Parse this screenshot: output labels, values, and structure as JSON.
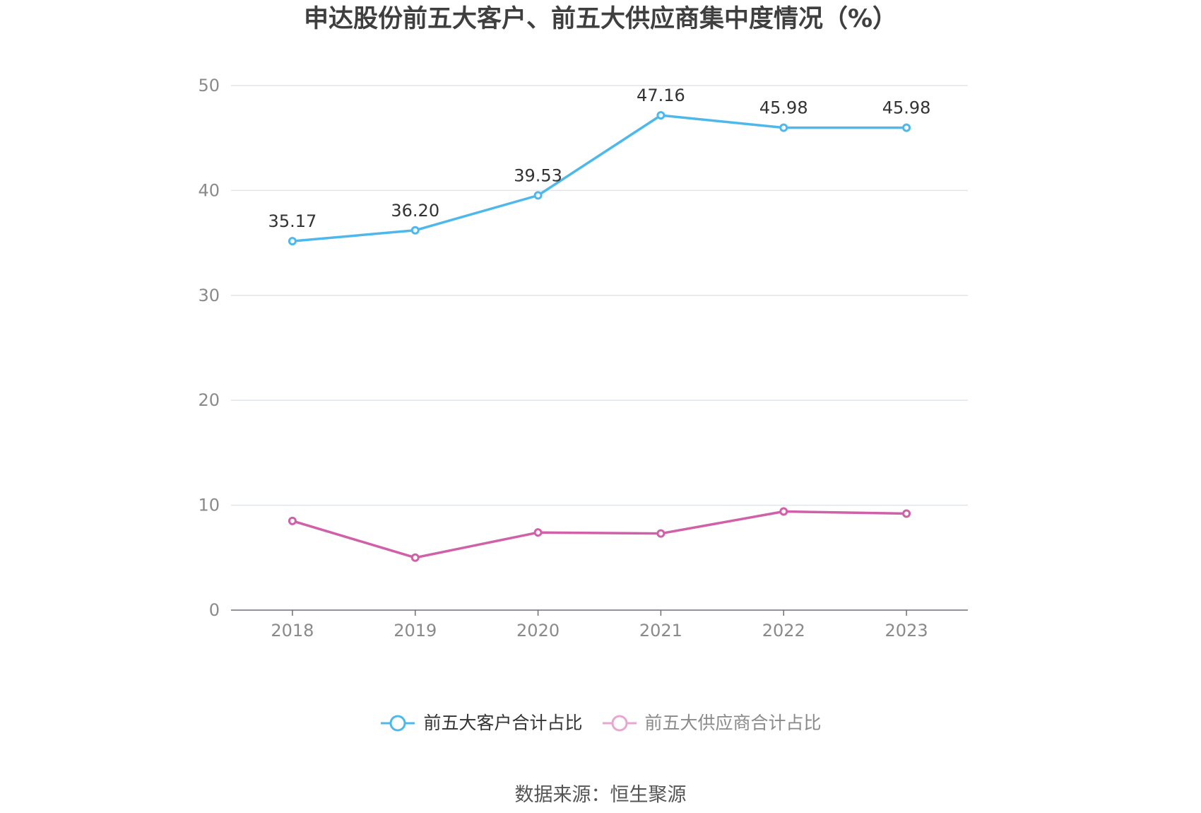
{
  "chart_data": {
    "type": "line",
    "title": "申达股份前五大客户、前五大供应商集中度情况（%）",
    "categories": [
      "2018",
      "2019",
      "2020",
      "2021",
      "2022",
      "2023"
    ],
    "series": [
      {
        "name": "前五大客户合计占比",
        "values": [
          35.17,
          36.2,
          39.53,
          47.16,
          45.98,
          45.98
        ],
        "labels": [
          "35.17",
          "36.20",
          "39.53",
          "47.16",
          "45.98",
          "45.98"
        ],
        "color": "#4db8ec",
        "show_labels": true
      },
      {
        "name": "前五大供应商合计占比",
        "values": [
          8.5,
          5.0,
          7.4,
          7.3,
          9.4,
          9.2
        ],
        "color": "#d060a8",
        "legend_color": "#e8a6d0",
        "show_labels": false
      }
    ],
    "ylim": [
      0,
      50
    ],
    "yticks": [
      0,
      10,
      20,
      30,
      40,
      50
    ],
    "grid": true,
    "legend": "bottom-center"
  },
  "legend_text_colors": [
    "#333333",
    "#8a8a8a"
  ],
  "source": "数据来源：恒生聚源"
}
